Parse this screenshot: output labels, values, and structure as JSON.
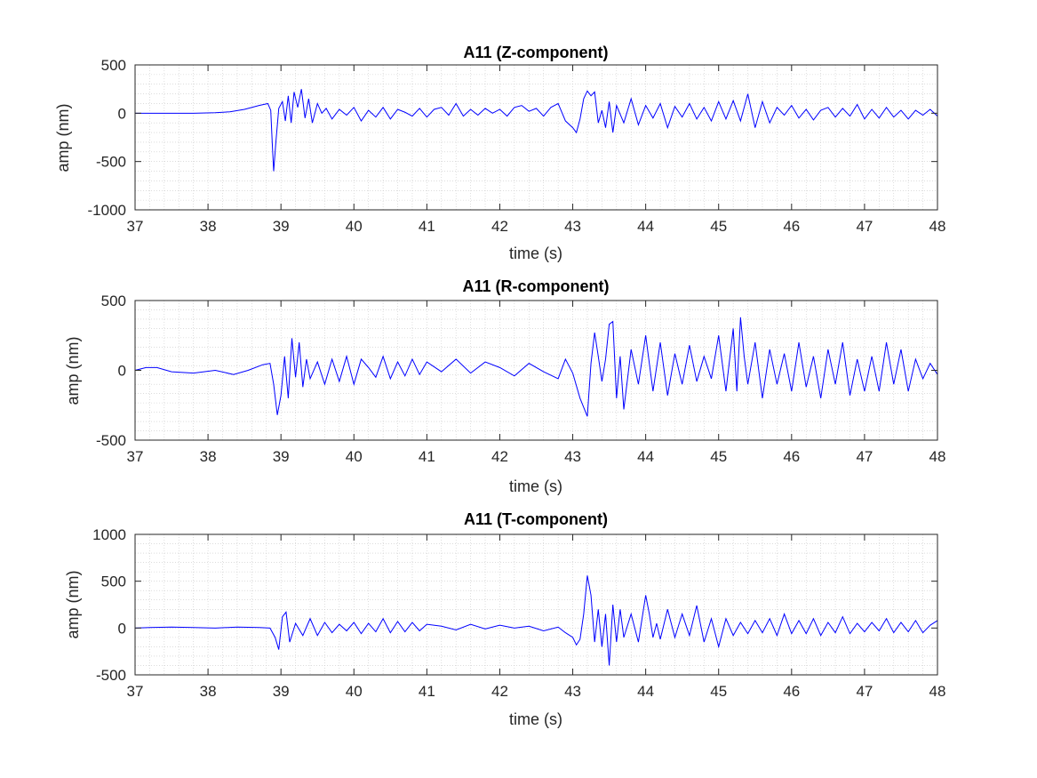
{
  "chart_data": [
    {
      "type": "line",
      "title": "A11 (Z-component)",
      "xlabel": "time (s)",
      "ylabel": "amp (nm)",
      "xlim": [
        37,
        48
      ],
      "ylim": [
        -1000,
        500
      ],
      "xticks": [
        37,
        38,
        39,
        40,
        41,
        42,
        43,
        44,
        45,
        46,
        47,
        48
      ],
      "yticks": [
        -1000,
        -500,
        0,
        500
      ],
      "grid": "minor-dotted",
      "series": [
        {
          "color": "#0000ff",
          "x": [
            37.0,
            37.4,
            37.8,
            38.1,
            38.3,
            38.5,
            38.7,
            38.82,
            38.86,
            38.88,
            38.9,
            38.93,
            38.97,
            39.02,
            39.06,
            39.1,
            39.14,
            39.18,
            39.23,
            39.28,
            39.33,
            39.38,
            39.43,
            39.5,
            39.56,
            39.62,
            39.7,
            39.8,
            39.9,
            40.0,
            40.1,
            40.2,
            40.3,
            40.4,
            40.5,
            40.6,
            40.7,
            40.8,
            40.9,
            41.0,
            41.1,
            41.2,
            41.3,
            41.4,
            41.5,
            41.6,
            41.7,
            41.8,
            41.9,
            42.0,
            42.1,
            42.2,
            42.3,
            42.4,
            42.5,
            42.6,
            42.7,
            42.8,
            42.9,
            43.0,
            43.05,
            43.1,
            43.15,
            43.2,
            43.25,
            43.3,
            43.35,
            43.4,
            43.45,
            43.5,
            43.55,
            43.6,
            43.7,
            43.8,
            43.9,
            44.0,
            44.1,
            44.2,
            44.3,
            44.4,
            44.5,
            44.6,
            44.7,
            44.8,
            44.9,
            45.0,
            45.1,
            45.2,
            45.3,
            45.4,
            45.5,
            45.6,
            45.7,
            45.8,
            45.9,
            46.0,
            46.1,
            46.2,
            46.3,
            46.4,
            46.5,
            46.6,
            46.7,
            46.8,
            46.9,
            47.0,
            47.1,
            47.2,
            47.3,
            47.4,
            47.5,
            47.6,
            47.7,
            47.8,
            47.9,
            48.0
          ],
          "y": [
            0,
            0,
            0,
            5,
            15,
            40,
            80,
            100,
            30,
            -300,
            -600,
            -300,
            50,
            120,
            -80,
            180,
            -100,
            220,
            60,
            250,
            -50,
            150,
            -100,
            100,
            0,
            50,
            -60,
            40,
            -20,
            60,
            -80,
            30,
            -40,
            60,
            -60,
            40,
            10,
            -30,
            50,
            -40,
            40,
            60,
            -20,
            100,
            -30,
            40,
            -20,
            50,
            0,
            40,
            -30,
            60,
            80,
            20,
            50,
            -30,
            60,
            100,
            -80,
            -150,
            -200,
            -60,
            150,
            230,
            180,
            220,
            -100,
            30,
            -150,
            120,
            -200,
            80,
            -100,
            150,
            -120,
            80,
            -50,
            100,
            -150,
            70,
            -40,
            100,
            -60,
            60,
            -80,
            120,
            -60,
            130,
            -80,
            200,
            -150,
            120,
            -100,
            60,
            -20,
            80,
            -50,
            40,
            -70,
            30,
            60,
            -40,
            50,
            -30,
            90,
            -60,
            40,
            -50,
            60,
            -40,
            30,
            -60,
            30,
            -20,
            40,
            -30
          ]
        }
      ]
    },
    {
      "type": "line",
      "title": "A11 (R-component)",
      "xlabel": "time (s)",
      "ylabel": "amp (nm)",
      "xlim": [
        37,
        48
      ],
      "ylim": [
        -500,
        500
      ],
      "xticks": [
        37,
        38,
        39,
        40,
        41,
        42,
        43,
        44,
        45,
        46,
        47,
        48
      ],
      "yticks": [
        -500,
        0,
        500
      ],
      "grid": "minor-dotted",
      "series": [
        {
          "color": "#0000ff",
          "x": [
            37.0,
            37.15,
            37.3,
            37.5,
            37.8,
            38.1,
            38.35,
            38.55,
            38.75,
            38.85,
            38.9,
            38.95,
            39.0,
            39.05,
            39.1,
            39.15,
            39.2,
            39.25,
            39.3,
            39.35,
            39.4,
            39.5,
            39.6,
            39.7,
            39.8,
            39.9,
            40.0,
            40.1,
            40.2,
            40.3,
            40.4,
            40.5,
            40.6,
            40.7,
            40.8,
            40.9,
            41.0,
            41.2,
            41.4,
            41.6,
            41.8,
            42.0,
            42.2,
            42.4,
            42.6,
            42.8,
            42.9,
            43.0,
            43.1,
            43.2,
            43.25,
            43.3,
            43.35,
            43.4,
            43.45,
            43.5,
            43.55,
            43.6,
            43.65,
            43.7,
            43.8,
            43.9,
            44.0,
            44.1,
            44.2,
            44.3,
            44.4,
            44.5,
            44.6,
            44.7,
            44.8,
            44.9,
            45.0,
            45.1,
            45.2,
            45.25,
            45.3,
            45.35,
            45.4,
            45.5,
            45.6,
            45.7,
            45.8,
            45.9,
            46.0,
            46.1,
            46.2,
            46.3,
            46.4,
            46.5,
            46.6,
            46.7,
            46.8,
            46.9,
            47.0,
            47.1,
            47.2,
            47.3,
            47.4,
            47.5,
            47.6,
            47.7,
            47.8,
            47.9,
            48.0
          ],
          "y": [
            0,
            20,
            20,
            -10,
            -20,
            0,
            -30,
            0,
            40,
            50,
            -100,
            -320,
            -180,
            100,
            -200,
            230,
            -50,
            200,
            -120,
            80,
            -60,
            60,
            -100,
            80,
            -80,
            100,
            -100,
            80,
            20,
            -50,
            100,
            -60,
            60,
            -40,
            80,
            -30,
            60,
            -10,
            80,
            -20,
            60,
            20,
            -40,
            50,
            -10,
            -60,
            80,
            -20,
            -200,
            -330,
            50,
            270,
            100,
            -80,
            80,
            330,
            350,
            -200,
            100,
            -280,
            150,
            -100,
            250,
            -150,
            200,
            -180,
            120,
            -100,
            180,
            -80,
            100,
            -60,
            250,
            -150,
            300,
            -150,
            380,
            100,
            -100,
            200,
            -200,
            150,
            -100,
            120,
            -150,
            200,
            -120,
            100,
            -200,
            150,
            -100,
            200,
            -180,
            80,
            -150,
            100,
            -150,
            200,
            -100,
            150,
            -150,
            80,
            -60,
            50,
            -30
          ]
        }
      ]
    },
    {
      "type": "line",
      "title": "A11 (T-component)",
      "xlabel": "time (s)",
      "ylabel": "amp (nm)",
      "xlim": [
        37,
        48
      ],
      "ylim": [
        -500,
        1000
      ],
      "xticks": [
        37,
        38,
        39,
        40,
        41,
        42,
        43,
        44,
        45,
        46,
        47,
        48
      ],
      "yticks": [
        -500,
        0,
        500,
        1000
      ],
      "grid": "minor-dotted",
      "series": [
        {
          "color": "#0000ff",
          "x": [
            37.0,
            37.2,
            37.5,
            37.8,
            38.1,
            38.4,
            38.7,
            38.85,
            38.92,
            38.97,
            39.02,
            39.07,
            39.12,
            39.2,
            39.3,
            39.4,
            39.5,
            39.6,
            39.7,
            39.8,
            39.9,
            40.0,
            40.1,
            40.2,
            40.3,
            40.4,
            40.5,
            40.6,
            40.7,
            40.8,
            40.9,
            41.0,
            41.2,
            41.4,
            41.6,
            41.8,
            42.0,
            42.2,
            42.4,
            42.6,
            42.8,
            42.9,
            43.0,
            43.05,
            43.1,
            43.15,
            43.2,
            43.25,
            43.3,
            43.35,
            43.4,
            43.45,
            43.5,
            43.55,
            43.6,
            43.65,
            43.7,
            43.8,
            43.9,
            44.0,
            44.05,
            44.1,
            44.15,
            44.2,
            44.3,
            44.4,
            44.5,
            44.6,
            44.7,
            44.8,
            44.9,
            45.0,
            45.1,
            45.2,
            45.3,
            45.4,
            45.5,
            45.6,
            45.7,
            45.8,
            45.9,
            46.0,
            46.1,
            46.2,
            46.3,
            46.4,
            46.5,
            46.6,
            46.7,
            46.8,
            46.9,
            47.0,
            47.1,
            47.2,
            47.3,
            47.4,
            47.5,
            47.6,
            47.7,
            47.8,
            47.9,
            48.0
          ],
          "y": [
            0,
            5,
            10,
            5,
            0,
            10,
            5,
            0,
            -100,
            -230,
            120,
            170,
            -150,
            50,
            -80,
            100,
            -80,
            60,
            -50,
            40,
            -30,
            60,
            -60,
            50,
            -40,
            100,
            -50,
            70,
            -40,
            60,
            -30,
            40,
            20,
            -20,
            40,
            -10,
            30,
            0,
            20,
            -30,
            10,
            -50,
            -100,
            -180,
            -120,
            150,
            560,
            350,
            -150,
            200,
            -200,
            150,
            -400,
            250,
            -150,
            200,
            -100,
            150,
            -150,
            350,
            150,
            -100,
            50,
            -120,
            200,
            -100,
            150,
            -80,
            240,
            -150,
            100,
            -200,
            100,
            -80,
            60,
            -60,
            80,
            -50,
            100,
            -80,
            150,
            -60,
            80,
            -60,
            100,
            -80,
            60,
            -50,
            120,
            -60,
            50,
            -40,
            60,
            -30,
            100,
            -50,
            60,
            -40,
            80,
            -50,
            30,
            80
          ]
        }
      ]
    }
  ]
}
